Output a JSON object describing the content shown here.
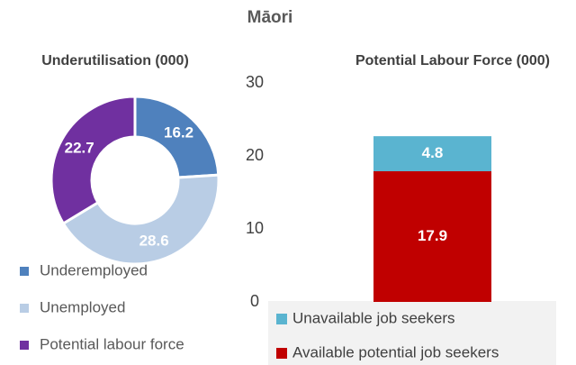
{
  "title": "Māori",
  "chart_data": [
    {
      "type": "donut",
      "title": "Underutilisation (000)",
      "categories": [
        "Underemployed",
        "Unemployed",
        "Potential labour force"
      ],
      "values": [
        16.2,
        28.6,
        22.7
      ],
      "colors": [
        "#4f81bd",
        "#b9cde5",
        "#7030a0"
      ]
    },
    {
      "type": "stacked_bar",
      "title": "Potential Labour Force (000)",
      "categories": [
        null
      ],
      "series": [
        {
          "name": "Available potential job seekers",
          "color": "#c00000",
          "values": [
            17.9
          ]
        },
        {
          "name": "Unavailable job seekers",
          "color": "#5ab4d0",
          "values": [
            4.8
          ]
        }
      ],
      "ylim": [
        0,
        30
      ],
      "yticks": [
        0,
        10,
        20,
        30
      ]
    }
  ]
}
